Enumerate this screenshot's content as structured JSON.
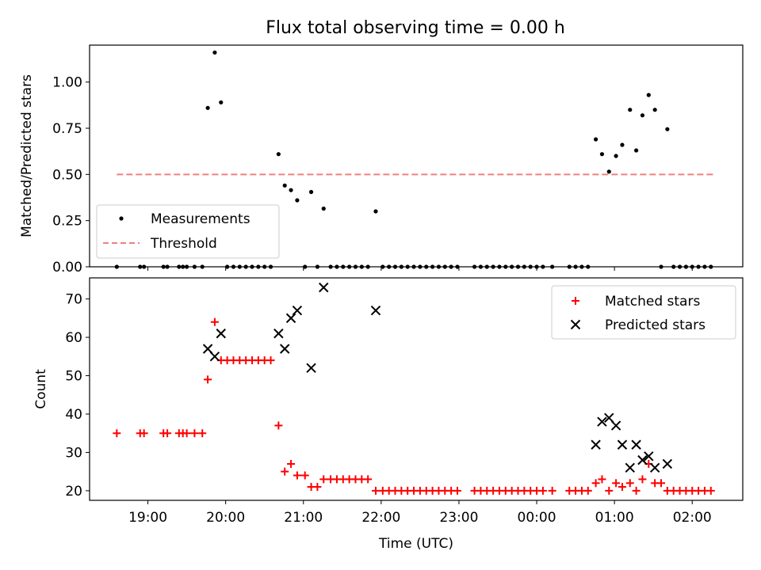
{
  "figure": {
    "title": "Flux total observing time = 0.00 h",
    "xlabel": "Time (UTC)",
    "x_ticks": [
      "19:00",
      "20:00",
      "21:00",
      "22:00",
      "23:00",
      "00:00",
      "01:00",
      "02:00"
    ],
    "x_tick_hours": [
      19,
      20,
      21,
      22,
      23,
      24,
      25,
      26
    ],
    "x_range_hours": [
      18.25,
      26.65
    ]
  },
  "colors": {
    "measurements": "#000000",
    "threshold": "#f08080",
    "matched": "#ff0000",
    "predicted": "#000000"
  },
  "chart_data": [
    {
      "type": "scatter",
      "ylabel": "Matched/Predicted stars",
      "ylim": [
        0,
        1.2
      ],
      "y_ticks": [
        0.0,
        0.25,
        0.5,
        0.75,
        1.0
      ],
      "y_tick_labels": [
        "0.00",
        "0.25",
        "0.50",
        "0.75",
        "1.00"
      ],
      "legend": "lower-left",
      "threshold": {
        "name": "Threshold",
        "value": 0.5,
        "x_range": [
          18.6,
          26.3
        ]
      },
      "series": [
        {
          "name": "Measurements",
          "marker": "dot",
          "x": [
            18.6,
            18.9,
            18.95,
            19.2,
            19.25,
            19.4,
            19.45,
            19.5,
            19.6,
            19.7,
            19.77,
            19.86,
            19.94,
            20.02,
            20.1,
            20.18,
            20.26,
            20.34,
            20.42,
            20.5,
            20.58,
            20.68,
            20.76,
            20.84,
            20.92,
            21.02,
            21.1,
            21.18,
            21.26,
            21.35,
            21.43,
            21.51,
            21.59,
            21.67,
            21.75,
            21.83,
            21.93,
            22.02,
            22.1,
            22.18,
            22.26,
            22.34,
            22.42,
            22.5,
            22.58,
            22.66,
            22.74,
            22.82,
            22.9,
            22.98,
            23.2,
            23.28,
            23.36,
            23.44,
            23.52,
            23.6,
            23.68,
            23.76,
            23.84,
            23.92,
            24.0,
            24.08,
            24.2,
            24.42,
            24.5,
            24.58,
            24.66,
            24.76,
            24.84,
            24.93,
            25.02,
            25.1,
            25.2,
            25.28,
            25.36,
            25.44,
            25.52,
            25.68,
            25.6,
            25.76,
            25.84,
            25.92,
            26.0,
            26.08,
            26.16,
            26.24
          ],
          "y": [
            0,
            0,
            0,
            0,
            0,
            0,
            0,
            0,
            0,
            0,
            0.86,
            1.16,
            0.89,
            0,
            0,
            0,
            0,
            0,
            0,
            0,
            0,
            0.61,
            0.44,
            0.415,
            0.36,
            0,
            0.405,
            0,
            0.315,
            0,
            0,
            0,
            0,
            0,
            0,
            0,
            0.3,
            0,
            0,
            0,
            0,
            0,
            0,
            0,
            0,
            0,
            0,
            0,
            0,
            0,
            0,
            0,
            0,
            0,
            0,
            0,
            0,
            0,
            0,
            0,
            0,
            0,
            0,
            0,
            0,
            0,
            0,
            0.69,
            0.61,
            0.515,
            0.6,
            0.66,
            0.85,
            0.63,
            0.82,
            0.93,
            0.85,
            0.745,
            0,
            0,
            0,
            0,
            0,
            0,
            0,
            0
          ]
        }
      ]
    },
    {
      "type": "scatter",
      "ylabel": "Count",
      "ylim": [
        17.5,
        75.5
      ],
      "y_ticks": [
        20,
        30,
        40,
        50,
        60,
        70
      ],
      "y_tick_labels": [
        "20",
        "30",
        "40",
        "50",
        "60",
        "70"
      ],
      "legend": "top-right",
      "series": [
        {
          "name": "Matched stars",
          "marker": "plus",
          "x": [
            18.6,
            18.9,
            18.95,
            19.2,
            19.25,
            19.4,
            19.45,
            19.5,
            19.6,
            19.7,
            19.77,
            19.86,
            19.94,
            20.02,
            20.1,
            20.18,
            20.26,
            20.34,
            20.42,
            20.5,
            20.58,
            20.68,
            20.76,
            20.84,
            20.92,
            21.02,
            21.1,
            21.18,
            21.26,
            21.35,
            21.43,
            21.51,
            21.59,
            21.67,
            21.75,
            21.83,
            21.93,
            22.02,
            22.1,
            22.18,
            22.26,
            22.34,
            22.42,
            22.5,
            22.58,
            22.66,
            22.74,
            22.82,
            22.9,
            22.98,
            23.2,
            23.28,
            23.36,
            23.44,
            23.52,
            23.6,
            23.68,
            23.76,
            23.84,
            23.92,
            24.0,
            24.08,
            24.2,
            24.42,
            24.5,
            24.58,
            24.66,
            24.76,
            24.84,
            24.93,
            25.02,
            25.1,
            25.2,
            25.28,
            25.36,
            25.44,
            25.52,
            25.6,
            25.68,
            25.76,
            25.84,
            25.92,
            26.0,
            26.08,
            26.16,
            26.24
          ],
          "y": [
            35,
            35,
            35,
            35,
            35,
            35,
            35,
            35,
            35,
            35,
            49,
            64,
            54,
            54,
            54,
            54,
            54,
            54,
            54,
            54,
            54,
            37,
            25,
            27,
            24,
            24,
            21,
            21,
            23,
            23,
            23,
            23,
            23,
            23,
            23,
            23,
            20,
            20,
            20,
            20,
            20,
            20,
            20,
            20,
            20,
            20,
            20,
            20,
            20,
            20,
            20,
            20,
            20,
            20,
            20,
            20,
            20,
            20,
            20,
            20,
            20,
            20,
            20,
            20,
            20,
            20,
            20,
            22,
            23,
            20,
            22,
            21,
            22,
            20,
            23,
            27,
            22,
            22,
            20,
            20,
            20,
            20,
            20,
            20,
            20,
            20
          ]
        },
        {
          "name": "Predicted stars",
          "marker": "x",
          "x": [
            19.77,
            19.86,
            19.94,
            20.68,
            20.76,
            20.84,
            20.92,
            21.1,
            21.26,
            21.93,
            24.76,
            24.84,
            24.93,
            25.02,
            25.1,
            25.2,
            25.28,
            25.36,
            25.44,
            25.52,
            25.68
          ],
          "y": [
            57,
            55,
            61,
            61,
            57,
            65,
            67,
            52,
            73,
            67,
            32,
            38,
            39,
            37,
            32,
            26,
            32,
            28,
            29,
            26,
            27
          ]
        }
      ]
    }
  ]
}
